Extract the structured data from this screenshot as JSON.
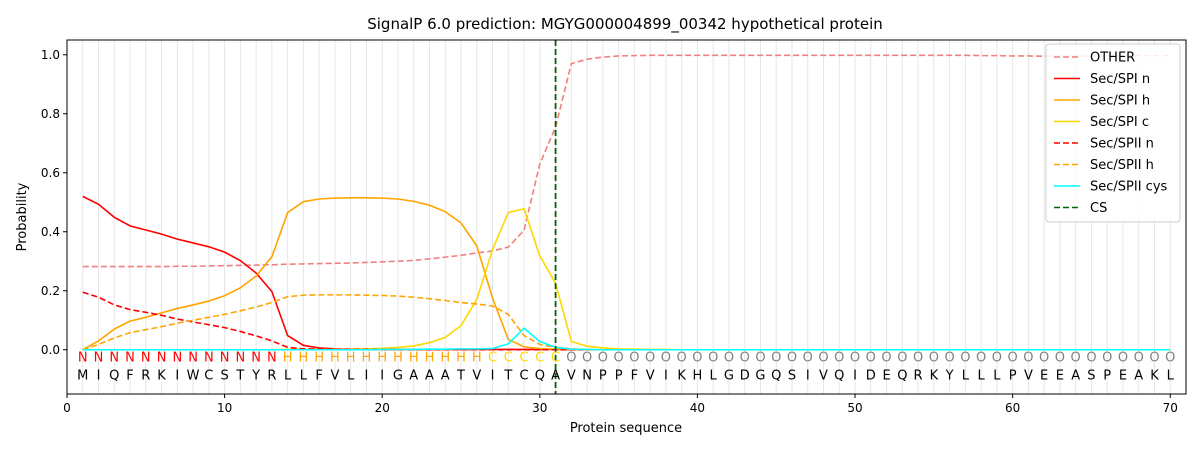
{
  "chart_data": {
    "type": "line",
    "title": "SignalP 6.0 prediction: MGYG000004899_00342 hypothetical protein",
    "xlabel": "Protein sequence",
    "ylabel": "Probability",
    "xlim": [
      0,
      71
    ],
    "ylim": [
      -0.15,
      1.05
    ],
    "xticks": [
      0,
      10,
      20,
      30,
      40,
      50,
      60,
      70
    ],
    "yticks": [
      0.0,
      0.2,
      0.4,
      0.6,
      0.8,
      1.0
    ],
    "legend_position": "top-right",
    "cleavage_site": 31,
    "sequence": [
      "M",
      "I",
      "Q",
      "F",
      "R",
      "K",
      "I",
      "W",
      "C",
      "S",
      "T",
      "Y",
      "R",
      "L",
      "L",
      "F",
      "V",
      "L",
      "I",
      "I",
      "G",
      "A",
      "A",
      "A",
      "T",
      "V",
      "I",
      "T",
      "C",
      "Q",
      "A",
      "V",
      "N",
      "P",
      "P",
      "F",
      "V",
      "I",
      "K",
      "H",
      "L",
      "G",
      "D",
      "G",
      "Q",
      "S",
      "I",
      "V",
      "Q",
      "I",
      "D",
      "E",
      "Q",
      "R",
      "K",
      "Y",
      "L",
      "L",
      "L",
      "P",
      "V",
      "E",
      "E",
      "A",
      "S",
      "P",
      "E",
      "A",
      "K",
      "L"
    ],
    "labels": [
      "N",
      "N",
      "N",
      "N",
      "N",
      "N",
      "N",
      "N",
      "N",
      "N",
      "N",
      "N",
      "N",
      "H",
      "H",
      "H",
      "H",
      "H",
      "H",
      "H",
      "H",
      "H",
      "H",
      "H",
      "H",
      "H",
      "C",
      "C",
      "C",
      "C",
      "C",
      "O",
      "O",
      "O",
      "O",
      "O",
      "O",
      "O",
      "O",
      "O",
      "O",
      "O",
      "O",
      "O",
      "O",
      "O",
      "O",
      "O",
      "O",
      "O",
      "O",
      "O",
      "O",
      "O",
      "O",
      "O",
      "O",
      "O",
      "O",
      "O",
      "O",
      "O",
      "O",
      "O",
      "O",
      "O",
      "O",
      "O",
      "O",
      "O"
    ],
    "label_colors": {
      "N": "#ff0000",
      "H": "#ffa500",
      "C": "#ffd700",
      "O": "#808080"
    },
    "series": [
      {
        "name": "OTHER",
        "color": "#f08080",
        "dash": "dashed",
        "values": [
          0.282,
          0.282,
          0.282,
          0.282,
          0.282,
          0.282,
          0.283,
          0.283,
          0.284,
          0.285,
          0.286,
          0.287,
          0.288,
          0.29,
          0.291,
          0.292,
          0.293,
          0.294,
          0.296,
          0.298,
          0.3,
          0.303,
          0.308,
          0.314,
          0.32,
          0.328,
          0.335,
          0.348,
          0.405,
          0.63,
          0.755,
          0.97,
          0.985,
          0.992,
          0.996,
          0.997,
          0.998,
          0.998,
          0.998,
          0.998,
          0.998,
          0.998,
          0.998,
          0.998,
          0.998,
          0.998,
          0.998,
          0.998,
          0.998,
          0.998,
          0.998,
          0.998,
          0.998,
          0.998,
          0.998,
          0.998,
          0.998,
          0.997,
          0.997,
          0.996,
          0.996,
          0.995,
          0.995,
          0.995,
          0.996,
          0.996,
          0.997,
          0.997,
          0.997,
          0.997
        ]
      },
      {
        "name": "Sec/SPI n",
        "color": "#ff0000",
        "dash": "solid",
        "values": [
          0.52,
          0.493,
          0.449,
          0.42,
          0.406,
          0.392,
          0.375,
          0.362,
          0.349,
          0.331,
          0.302,
          0.26,
          0.197,
          0.048,
          0.015,
          0.006,
          0.003,
          0.002,
          0.002,
          0.001,
          0.001,
          0.001,
          0.001,
          0.001,
          0.001,
          0.001,
          0.001,
          0.001,
          0.001,
          0.001,
          0.001,
          0.0,
          0.0,
          0.0,
          0.0,
          0.0,
          0.0,
          0.0,
          0.0,
          0.0,
          0.0,
          0.0,
          0.0,
          0.0,
          0.0,
          0.0,
          0.0,
          0.0,
          0.0,
          0.0,
          0.0,
          0.0,
          0.0,
          0.0,
          0.0,
          0.0,
          0.0,
          0.0,
          0.0,
          0.0,
          0.0,
          0.0,
          0.0,
          0.0,
          0.0,
          0.0,
          0.0,
          0.0,
          0.0,
          0.0
        ]
      },
      {
        "name": "Sec/SPI h",
        "color": "#ffa500",
        "dash": "solid",
        "values": [
          0.0,
          0.03,
          0.07,
          0.097,
          0.11,
          0.125,
          0.14,
          0.152,
          0.165,
          0.183,
          0.21,
          0.25,
          0.315,
          0.465,
          0.502,
          0.511,
          0.514,
          0.515,
          0.515,
          0.514,
          0.511,
          0.503,
          0.49,
          0.468,
          0.43,
          0.352,
          0.175,
          0.035,
          0.01,
          0.004,
          0.002,
          0.001,
          0.0,
          0.0,
          0.0,
          0.0,
          0.0,
          0.0,
          0.0,
          0.0,
          0.0,
          0.0,
          0.0,
          0.0,
          0.0,
          0.0,
          0.0,
          0.0,
          0.0,
          0.0,
          0.0,
          0.0,
          0.0,
          0.0,
          0.0,
          0.0,
          0.0,
          0.0,
          0.0,
          0.0,
          0.0,
          0.0,
          0.0,
          0.0,
          0.0,
          0.0,
          0.0,
          0.0,
          0.0,
          0.0
        ]
      },
      {
        "name": "Sec/SPI c",
        "color": "#ffd700",
        "dash": "solid",
        "values": [
          0.0,
          0.0,
          0.0,
          0.0,
          0.0,
          0.0,
          0.0,
          0.0,
          0.0,
          0.0,
          0.0,
          0.0,
          0.0,
          0.001,
          0.001,
          0.001,
          0.001,
          0.002,
          0.003,
          0.005,
          0.008,
          0.013,
          0.024,
          0.042,
          0.082,
          0.17,
          0.34,
          0.465,
          0.478,
          0.318,
          0.225,
          0.028,
          0.012,
          0.006,
          0.003,
          0.002,
          0.001,
          0.001,
          0.0,
          0.0,
          0.0,
          0.0,
          0.0,
          0.0,
          0.0,
          0.0,
          0.0,
          0.0,
          0.0,
          0.0,
          0.0,
          0.0,
          0.0,
          0.0,
          0.0,
          0.0,
          0.0,
          0.0,
          0.0,
          0.0,
          0.0,
          0.0,
          0.0,
          0.0,
          0.0,
          0.0,
          0.0,
          0.0,
          0.0,
          0.0
        ]
      },
      {
        "name": "Sec/SPII n",
        "color": "#ff0000",
        "dash": "dashed",
        "values": [
          0.195,
          0.178,
          0.152,
          0.136,
          0.127,
          0.117,
          0.104,
          0.094,
          0.085,
          0.075,
          0.062,
          0.047,
          0.03,
          0.008,
          0.003,
          0.002,
          0.001,
          0.001,
          0.001,
          0.001,
          0.0,
          0.0,
          0.0,
          0.0,
          0.0,
          0.0,
          0.0,
          0.0,
          0.0,
          0.0,
          0.0,
          0.0,
          0.0,
          0.0,
          0.0,
          0.0,
          0.0,
          0.0,
          0.0,
          0.0,
          0.0,
          0.0,
          0.0,
          0.0,
          0.0,
          0.0,
          0.0,
          0.0,
          0.0,
          0.0,
          0.0,
          0.0,
          0.0,
          0.0,
          0.0,
          0.0,
          0.0,
          0.0,
          0.0,
          0.0,
          0.0,
          0.0,
          0.0,
          0.0,
          0.0,
          0.0,
          0.0,
          0.0,
          0.0,
          0.0
        ]
      },
      {
        "name": "Sec/SPII h",
        "color": "#ffa500",
        "dash": "dashed",
        "values": [
          0.0,
          0.018,
          0.04,
          0.058,
          0.068,
          0.078,
          0.09,
          0.1,
          0.11,
          0.12,
          0.132,
          0.145,
          0.16,
          0.18,
          0.185,
          0.186,
          0.186,
          0.186,
          0.185,
          0.184,
          0.182,
          0.178,
          0.173,
          0.167,
          0.16,
          0.155,
          0.148,
          0.12,
          0.048,
          0.018,
          0.008,
          0.003,
          0.001,
          0.0,
          0.0,
          0.0,
          0.0,
          0.0,
          0.0,
          0.0,
          0.0,
          0.0,
          0.0,
          0.0,
          0.0,
          0.0,
          0.0,
          0.0,
          0.0,
          0.0,
          0.0,
          0.0,
          0.0,
          0.0,
          0.0,
          0.0,
          0.0,
          0.0,
          0.0,
          0.0,
          0.0,
          0.0,
          0.0,
          0.0,
          0.0,
          0.0,
          0.0,
          0.0,
          0.0,
          0.0
        ]
      },
      {
        "name": "Sec/SPII cys",
        "color": "#00ffff",
        "dash": "solid",
        "values": [
          0.0,
          0.0,
          0.0,
          0.0,
          0.0,
          0.0,
          0.0,
          0.0,
          0.0,
          0.0,
          0.0,
          0.0,
          0.0,
          0.0,
          0.0,
          0.0,
          0.0,
          0.0,
          0.0,
          0.001,
          0.001,
          0.001,
          0.002,
          0.002,
          0.003,
          0.003,
          0.004,
          0.02,
          0.073,
          0.028,
          0.008,
          0.002,
          0.001,
          0.0,
          0.0,
          0.0,
          0.0,
          0.0,
          0.0,
          0.0,
          0.0,
          0.0,
          0.0,
          0.0,
          0.0,
          0.0,
          0.0,
          0.0,
          0.0,
          0.0,
          0.0,
          0.0,
          0.0,
          0.0,
          0.0,
          0.0,
          0.0,
          0.0,
          0.0,
          0.0,
          0.0,
          0.0,
          0.0,
          0.0,
          0.0,
          0.0,
          0.0,
          0.0,
          0.0,
          0.0
        ]
      },
      {
        "name": "CS",
        "color": "#006400",
        "dash": "dashed",
        "vertical_at": 31
      }
    ]
  }
}
